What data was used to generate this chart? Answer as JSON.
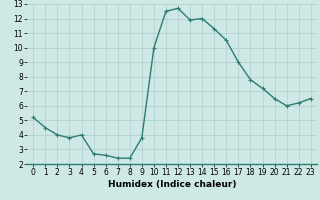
{
  "x": [
    0,
    1,
    2,
    3,
    4,
    5,
    6,
    7,
    8,
    9,
    10,
    11,
    12,
    13,
    14,
    15,
    16,
    17,
    18,
    19,
    20,
    21,
    22,
    23
  ],
  "y": [
    5.2,
    4.5,
    4.0,
    3.8,
    4.0,
    2.7,
    2.6,
    2.4,
    2.4,
    3.8,
    10.0,
    12.5,
    12.7,
    11.9,
    12.0,
    11.3,
    10.5,
    9.0,
    7.8,
    7.2,
    6.5,
    6.0,
    6.2,
    6.5
  ],
  "line_color": "#2e7d6e",
  "marker": "+",
  "marker_size": 3,
  "marker_linewidth": 0.8,
  "background_color": "#cde8e5",
  "grid_color": "#aecfcc",
  "xlabel": "Humidex (Indice chaleur)",
  "xlim": [
    -0.5,
    23.5
  ],
  "ylim": [
    2,
    13
  ],
  "xticks": [
    0,
    1,
    2,
    3,
    4,
    5,
    6,
    7,
    8,
    9,
    10,
    11,
    12,
    13,
    14,
    15,
    16,
    17,
    18,
    19,
    20,
    21,
    22,
    23
  ],
  "yticks": [
    2,
    3,
    4,
    5,
    6,
    7,
    8,
    9,
    10,
    11,
    12,
    13
  ],
  "tick_fontsize": 5.5,
  "xlabel_fontsize": 6.5,
  "line_width": 1.0
}
